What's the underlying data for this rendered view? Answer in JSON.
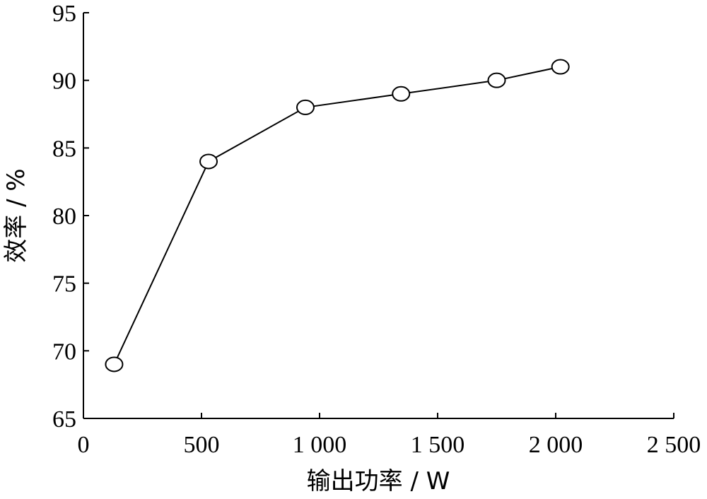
{
  "chart_data": {
    "type": "line",
    "xlabel": "输出功率 / W",
    "ylabel": "效率 / %",
    "xlim": [
      0,
      2500
    ],
    "ylim": [
      65,
      95
    ],
    "x_ticks": [
      0,
      500,
      1000,
      1500,
      2000,
      2500
    ],
    "x_tick_labels": [
      "0",
      "500",
      "1 000",
      "1 500",
      "2 000",
      "2 500"
    ],
    "y_ticks": [
      65,
      70,
      75,
      80,
      85,
      90,
      95
    ],
    "y_tick_labels": [
      "65",
      "70",
      "75",
      "80",
      "85",
      "90",
      "95"
    ],
    "grid": false,
    "marker": "open-circle",
    "series": [
      {
        "x": [
          130,
          530,
          940,
          1345,
          1750,
          2020
        ],
        "y": [
          69,
          84,
          88,
          89,
          90,
          91
        ]
      }
    ]
  }
}
